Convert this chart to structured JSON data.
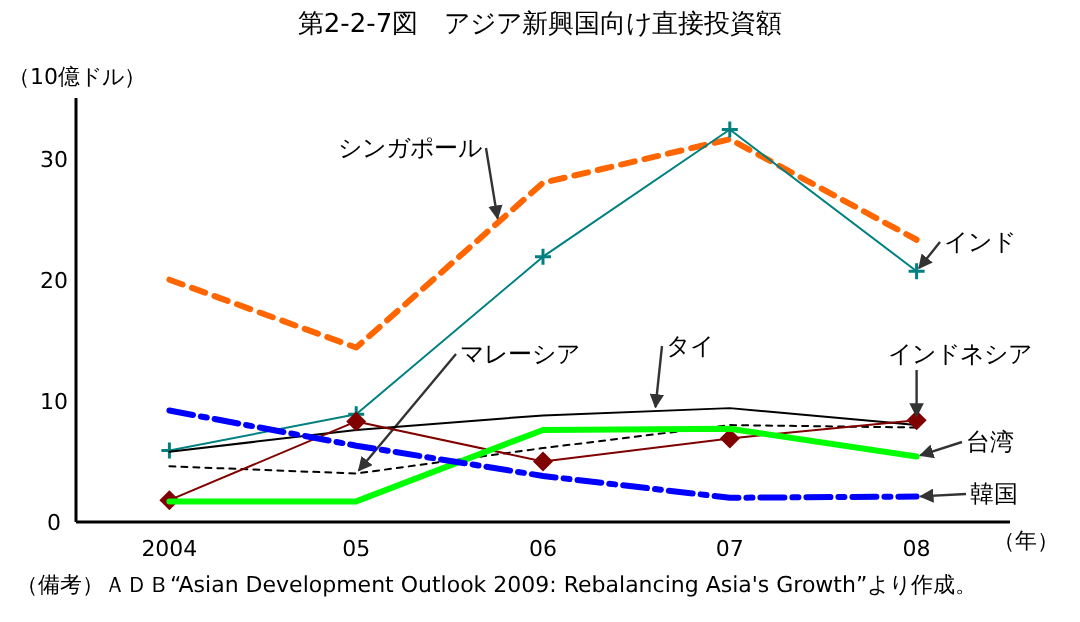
{
  "chart_data": {
    "type": "line",
    "title": "第2-2-7図　アジア新興国向け直接投資額",
    "ylabel": "（10億ドル）",
    "xlabel": "（年）",
    "categories": [
      "2004",
      "05",
      "06",
      "07",
      "08"
    ],
    "ylim": [
      0,
      35
    ],
    "yticks": [
      0,
      10,
      20,
      30
    ],
    "grid": false,
    "series": [
      {
        "name": "シンガポール",
        "color": "#ff6600",
        "line_style": "dashed",
        "values": [
          20.0,
          14.4,
          28.0,
          31.6,
          23.3
        ]
      },
      {
        "name": "インド",
        "color": "#008080",
        "line_style": "solid",
        "marker": "cross",
        "values": [
          5.9,
          8.9,
          21.9,
          32.4,
          20.7
        ]
      },
      {
        "name": "マレーシア",
        "color": "#000000",
        "line_style": "dotted",
        "values": [
          4.6,
          4.0,
          6.1,
          8.0,
          7.8
        ]
      },
      {
        "name": "タイ",
        "color": "#000000",
        "line_style": "solid",
        "values": [
          5.8,
          7.6,
          8.8,
          9.4,
          8.0
        ]
      },
      {
        "name": "インドネシア",
        "color": "#800000",
        "line_style": "solid",
        "marker": "diamond",
        "values": [
          1.8,
          8.3,
          5.0,
          6.9,
          8.4
        ]
      },
      {
        "name": "台湾",
        "color": "#00ff00",
        "line_style": "solid",
        "values": [
          1.7,
          1.7,
          7.6,
          7.7,
          5.4
        ]
      },
      {
        "name": "韓国",
        "color": "#0000ff",
        "line_style": "dashdot",
        "values": [
          9.2,
          6.3,
          3.8,
          2.0,
          2.1
        ]
      }
    ],
    "annotations": [
      "（備考）ＡＤＢ“Asian Development Outlook 2009: Rebalancing Asia's Growth”より作成。"
    ]
  }
}
